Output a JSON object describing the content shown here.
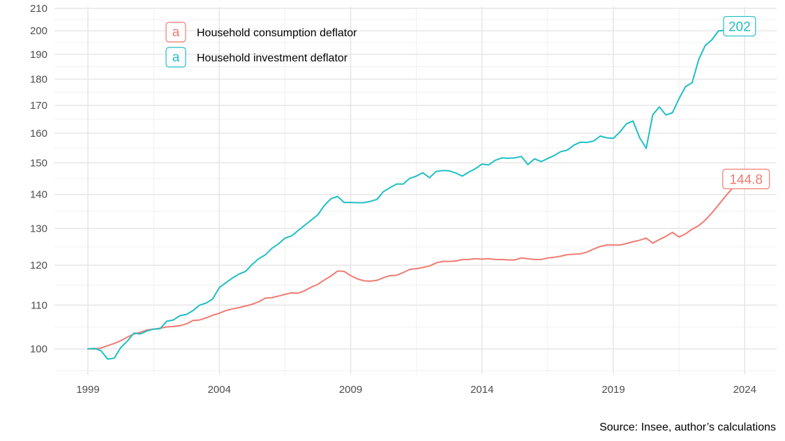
{
  "chart_data": {
    "type": "line",
    "scale_y": "log",
    "ylim": [
      96,
      210
    ],
    "xlim": [
      1998.5,
      2025.5
    ],
    "y_ticks": [
      100,
      110,
      120,
      130,
      140,
      150,
      160,
      170,
      180,
      190,
      200,
      210
    ],
    "y_tick_labels": [
      "100",
      "110",
      "120",
      "130",
      "140",
      "150",
      "160",
      "170",
      "180",
      "190",
      "200",
      "210"
    ],
    "x_ticks": [
      1999,
      2004,
      2009,
      2014,
      2019,
      2024
    ],
    "x_tick_labels": [
      "1999",
      "2004",
      "2009",
      "2014",
      "2019",
      "2024"
    ],
    "grid": true,
    "legend_position": "top-left",
    "caption": "Source: Insee, author’s calculations",
    "series": [
      {
        "name": "Household consumption deflator",
        "color": "#f07b72",
        "end_label": "144.8",
        "points": [
          [
            1999.0,
            100.0
          ],
          [
            1999.25,
            100.0
          ],
          [
            1999.5,
            100.2
          ],
          [
            1999.75,
            100.7
          ],
          [
            2000.0,
            101.2
          ],
          [
            2000.25,
            101.8
          ],
          [
            2000.5,
            102.6
          ],
          [
            2000.75,
            103.3
          ],
          [
            2001.0,
            103.7
          ],
          [
            2001.25,
            104.2
          ],
          [
            2001.5,
            104.4
          ],
          [
            2001.75,
            104.6
          ],
          [
            2002.0,
            104.9
          ],
          [
            2002.25,
            105.0
          ],
          [
            2002.5,
            105.2
          ],
          [
            2002.75,
            105.6
          ],
          [
            2003.0,
            106.4
          ],
          [
            2003.25,
            106.5
          ],
          [
            2003.5,
            107.0
          ],
          [
            2003.75,
            107.6
          ],
          [
            2004.0,
            108.1
          ],
          [
            2004.25,
            108.7
          ],
          [
            2004.5,
            109.1
          ],
          [
            2004.75,
            109.4
          ],
          [
            2005.0,
            109.8
          ],
          [
            2005.25,
            110.2
          ],
          [
            2005.5,
            110.8
          ],
          [
            2005.75,
            111.7
          ],
          [
            2006.0,
            111.8
          ],
          [
            2006.25,
            112.2
          ],
          [
            2006.5,
            112.6
          ],
          [
            2006.75,
            113.0
          ],
          [
            2007.0,
            112.9
          ],
          [
            2007.25,
            113.5
          ],
          [
            2007.5,
            114.4
          ],
          [
            2007.75,
            115.1
          ],
          [
            2008.0,
            116.2
          ],
          [
            2008.25,
            117.2
          ],
          [
            2008.5,
            118.5
          ],
          [
            2008.75,
            118.4
          ],
          [
            2009.0,
            117.3
          ],
          [
            2009.25,
            116.5
          ],
          [
            2009.5,
            116.0
          ],
          [
            2009.75,
            115.9
          ],
          [
            2010.0,
            116.1
          ],
          [
            2010.25,
            116.8
          ],
          [
            2010.5,
            117.3
          ],
          [
            2010.75,
            117.4
          ],
          [
            2011.0,
            118.1
          ],
          [
            2011.25,
            118.9
          ],
          [
            2011.5,
            119.1
          ],
          [
            2011.75,
            119.4
          ],
          [
            2012.0,
            119.8
          ],
          [
            2012.25,
            120.6
          ],
          [
            2012.5,
            121.0
          ],
          [
            2012.75,
            121.0
          ],
          [
            2013.0,
            121.1
          ],
          [
            2013.25,
            121.5
          ],
          [
            2013.5,
            121.5
          ],
          [
            2013.75,
            121.7
          ],
          [
            2014.0,
            121.6
          ],
          [
            2014.25,
            121.7
          ],
          [
            2014.5,
            121.5
          ],
          [
            2014.75,
            121.5
          ],
          [
            2015.0,
            121.4
          ],
          [
            2015.25,
            121.4
          ],
          [
            2015.5,
            121.9
          ],
          [
            2015.75,
            121.7
          ],
          [
            2016.0,
            121.5
          ],
          [
            2016.25,
            121.5
          ],
          [
            2016.5,
            121.9
          ],
          [
            2016.75,
            122.1
          ],
          [
            2017.0,
            122.4
          ],
          [
            2017.25,
            122.8
          ],
          [
            2017.5,
            122.9
          ],
          [
            2017.75,
            123.0
          ],
          [
            2018.0,
            123.5
          ],
          [
            2018.25,
            124.3
          ],
          [
            2018.5,
            125.0
          ],
          [
            2018.75,
            125.4
          ],
          [
            2019.0,
            125.4
          ],
          [
            2019.25,
            125.4
          ],
          [
            2019.5,
            125.8
          ],
          [
            2019.75,
            126.3
          ],
          [
            2020.0,
            126.7
          ],
          [
            2020.25,
            127.3
          ],
          [
            2020.5,
            125.9
          ],
          [
            2020.75,
            126.9
          ],
          [
            2021.0,
            127.8
          ],
          [
            2021.25,
            128.9
          ],
          [
            2021.5,
            127.6
          ],
          [
            2021.75,
            128.5
          ],
          [
            2022.0,
            129.8
          ],
          [
            2022.25,
            130.8
          ],
          [
            2022.5,
            132.4
          ],
          [
            2022.75,
            134.5
          ],
          [
            2023.0,
            136.8
          ],
          [
            2023.25,
            139.3
          ],
          [
            2023.5,
            141.6
          ],
          [
            2023.75,
            143.5
          ],
          [
            2024.0,
            144.8
          ]
        ]
      },
      {
        "name": "Household investment deflator",
        "color": "#1ebfc4",
        "end_label": "202",
        "points": [
          [
            1999.0,
            100.0
          ],
          [
            1999.25,
            100.1
          ],
          [
            1999.5,
            99.6
          ],
          [
            1999.75,
            97.8
          ],
          [
            2000.0,
            98.0
          ],
          [
            2000.25,
            100.3
          ],
          [
            2000.5,
            101.7
          ],
          [
            2000.75,
            103.5
          ],
          [
            2001.0,
            103.3
          ],
          [
            2001.25,
            104.0
          ],
          [
            2001.5,
            104.4
          ],
          [
            2001.75,
            104.5
          ],
          [
            2002.0,
            106.2
          ],
          [
            2002.25,
            106.5
          ],
          [
            2002.5,
            107.5
          ],
          [
            2002.75,
            107.8
          ],
          [
            2003.0,
            108.7
          ],
          [
            2003.25,
            110.0
          ],
          [
            2003.5,
            110.5
          ],
          [
            2003.75,
            111.5
          ],
          [
            2004.0,
            114.3
          ],
          [
            2004.25,
            115.5
          ],
          [
            2004.5,
            116.7
          ],
          [
            2004.75,
            117.7
          ],
          [
            2005.0,
            118.4
          ],
          [
            2005.25,
            120.2
          ],
          [
            2005.5,
            121.7
          ],
          [
            2005.75,
            122.7
          ],
          [
            2006.0,
            124.5
          ],
          [
            2006.25,
            125.7
          ],
          [
            2006.5,
            127.3
          ],
          [
            2006.75,
            127.9
          ],
          [
            2007.0,
            129.4
          ],
          [
            2007.25,
            130.9
          ],
          [
            2007.5,
            132.4
          ],
          [
            2007.75,
            133.9
          ],
          [
            2008.0,
            136.7
          ],
          [
            2008.25,
            138.7
          ],
          [
            2008.5,
            139.4
          ],
          [
            2008.75,
            137.6
          ],
          [
            2009.0,
            137.6
          ],
          [
            2009.25,
            137.5
          ],
          [
            2009.5,
            137.5
          ],
          [
            2009.75,
            137.9
          ],
          [
            2010.0,
            138.5
          ],
          [
            2010.25,
            140.9
          ],
          [
            2010.5,
            142.1
          ],
          [
            2010.75,
            143.2
          ],
          [
            2011.0,
            143.2
          ],
          [
            2011.25,
            145.0
          ],
          [
            2011.5,
            145.7
          ],
          [
            2011.75,
            146.8
          ],
          [
            2012.0,
            145.2
          ],
          [
            2012.25,
            147.2
          ],
          [
            2012.5,
            147.5
          ],
          [
            2012.75,
            147.4
          ],
          [
            2013.0,
            146.7
          ],
          [
            2013.25,
            145.7
          ],
          [
            2013.5,
            147.0
          ],
          [
            2013.75,
            148.1
          ],
          [
            2014.0,
            149.6
          ],
          [
            2014.25,
            149.3
          ],
          [
            2014.5,
            150.8
          ],
          [
            2014.75,
            151.6
          ],
          [
            2015.0,
            151.5
          ],
          [
            2015.25,
            151.6
          ],
          [
            2015.5,
            152.1
          ],
          [
            2015.75,
            149.4
          ],
          [
            2016.0,
            151.3
          ],
          [
            2016.25,
            150.4
          ],
          [
            2016.5,
            151.4
          ],
          [
            2016.75,
            152.4
          ],
          [
            2017.0,
            153.7
          ],
          [
            2017.25,
            154.2
          ],
          [
            2017.5,
            155.9
          ],
          [
            2017.75,
            156.9
          ],
          [
            2018.0,
            156.8
          ],
          [
            2018.25,
            157.3
          ],
          [
            2018.5,
            159.0
          ],
          [
            2018.75,
            158.4
          ],
          [
            2019.0,
            158.2
          ],
          [
            2019.25,
            160.4
          ],
          [
            2019.5,
            163.3
          ],
          [
            2019.75,
            164.3
          ],
          [
            2020.0,
            158.5
          ],
          [
            2020.25,
            154.8
          ],
          [
            2020.5,
            166.6
          ],
          [
            2020.75,
            169.4
          ],
          [
            2021.0,
            166.5
          ],
          [
            2021.25,
            167.3
          ],
          [
            2021.5,
            172.5
          ],
          [
            2021.75,
            177.1
          ],
          [
            2022.0,
            178.6
          ],
          [
            2022.25,
            187.9
          ],
          [
            2022.5,
            193.7
          ],
          [
            2022.75,
            196.1
          ],
          [
            2023.0,
            199.9
          ],
          [
            2023.25,
            200.2
          ],
          [
            2023.5,
            201.0
          ],
          [
            2023.75,
            202.0
          ]
        ]
      }
    ]
  }
}
